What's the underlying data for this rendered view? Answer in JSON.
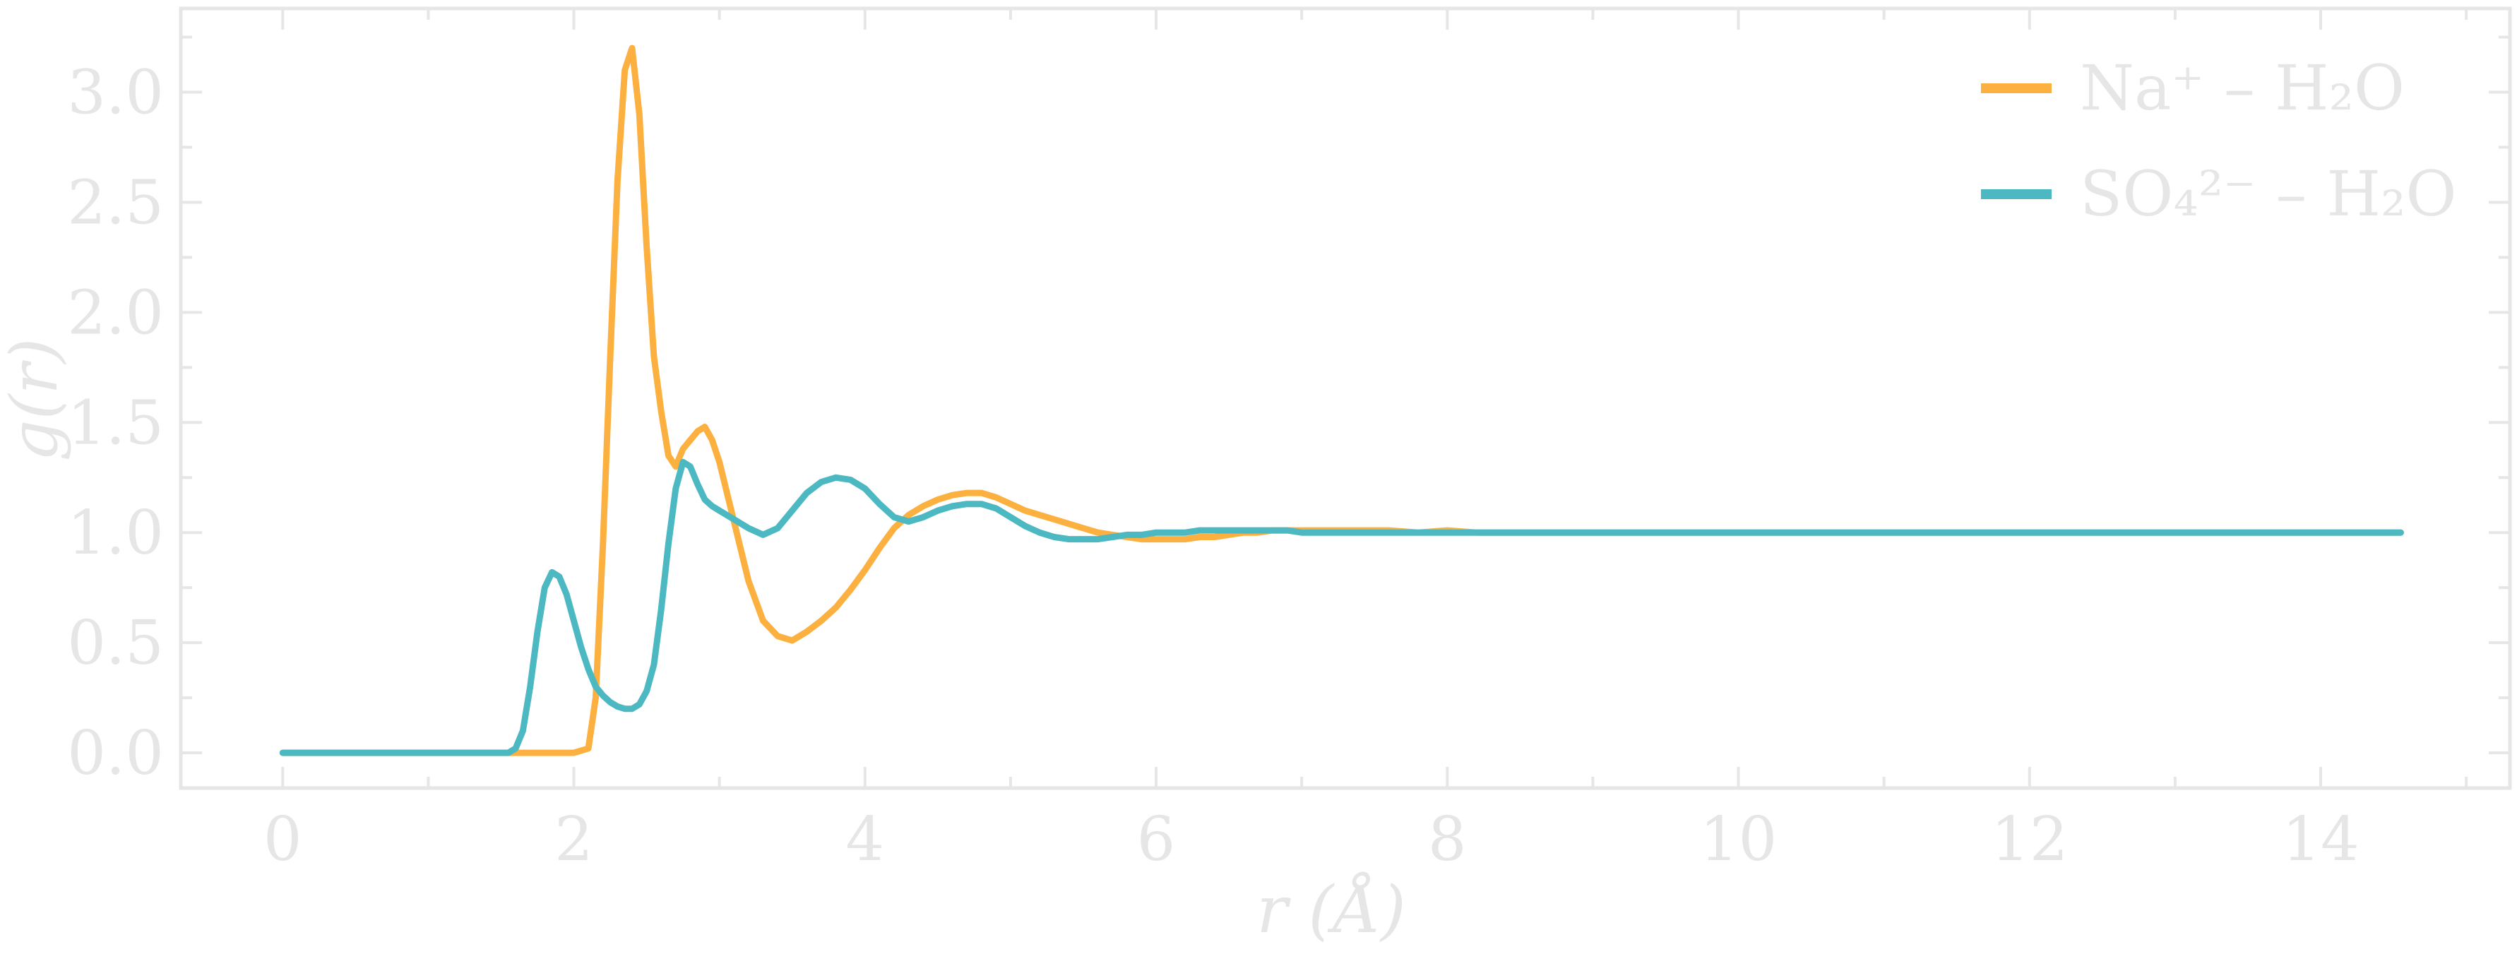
{
  "chart_data": {
    "type": "line",
    "title": "",
    "xlabel": "r (Å)",
    "ylabel": "g(r)",
    "xlim": [
      -0.7,
      15.3
    ],
    "ylim": [
      -0.16,
      3.38
    ],
    "x_ticks": [
      0,
      2,
      4,
      6,
      8,
      10,
      12,
      14
    ],
    "x_tick_labels": [
      "0",
      "2",
      "4",
      "6",
      "8",
      "10",
      "12",
      "14"
    ],
    "y_ticks": [
      0.0,
      0.5,
      1.0,
      1.5,
      2.0,
      2.5,
      3.0
    ],
    "y_tick_labels": [
      "0.0",
      "0.5",
      "1.0",
      "1.5",
      "2.0",
      "2.5",
      "3.0"
    ],
    "grid": false,
    "legend_position": "top-right",
    "colors": {
      "axis": "#e6e6e6",
      "text": "#e6e6e6"
    },
    "series": [
      {
        "name": "Na⁺ – H₂O",
        "color": "#fbb040",
        "x": [
          0,
          2.0,
          2.1,
          2.15,
          2.2,
          2.25,
          2.3,
          2.35,
          2.4,
          2.45,
          2.5,
          2.55,
          2.6,
          2.65,
          2.7,
          2.75,
          2.8,
          2.85,
          2.9,
          2.95,
          3.0,
          3.1,
          3.2,
          3.3,
          3.4,
          3.5,
          3.6,
          3.7,
          3.8,
          3.9,
          4.0,
          4.1,
          4.2,
          4.3,
          4.4,
          4.5,
          4.6,
          4.7,
          4.8,
          4.9,
          5.0,
          5.1,
          5.2,
          5.3,
          5.4,
          5.5,
          5.6,
          5.7,
          5.8,
          5.9,
          6.0,
          6.1,
          6.2,
          6.3,
          6.4,
          6.5,
          6.6,
          6.7,
          6.8,
          6.9,
          7.0,
          7.2,
          7.4,
          7.6,
          7.8,
          8.0,
          8.2,
          8.4,
          8.6,
          8.8,
          9.0,
          9.2,
          9.4,
          9.6,
          9.8,
          10.0,
          10.2,
          10.4,
          10.6,
          10.8,
          11.0,
          11.2,
          11.4,
          11.6,
          11.8,
          12.0,
          12.2,
          12.4,
          12.6,
          12.8,
          13.0,
          13.2,
          13.4,
          13.6,
          13.8,
          14.0,
          14.2,
          14.4,
          14.55
        ],
        "y": [
          0.0,
          0.0,
          0.02,
          0.25,
          0.95,
          1.8,
          2.6,
          3.1,
          3.2,
          2.9,
          2.3,
          1.8,
          1.55,
          1.35,
          1.3,
          1.38,
          1.42,
          1.46,
          1.48,
          1.42,
          1.32,
          1.05,
          0.78,
          0.6,
          0.53,
          0.51,
          0.55,
          0.6,
          0.66,
          0.74,
          0.83,
          0.93,
          1.02,
          1.08,
          1.12,
          1.15,
          1.17,
          1.18,
          1.18,
          1.16,
          1.13,
          1.1,
          1.08,
          1.06,
          1.04,
          1.02,
          1.0,
          0.99,
          0.98,
          0.97,
          0.97,
          0.97,
          0.97,
          0.98,
          0.98,
          0.99,
          1.0,
          1.0,
          1.01,
          1.01,
          1.01,
          1.01,
          1.01,
          1.01,
          1.0,
          1.01,
          1.0,
          1.0,
          1.0,
          1.0,
          1.0,
          1.0,
          1.0,
          1.0,
          1.0,
          1.0,
          1.0,
          1.0,
          1.0,
          1.0,
          1.0,
          1.0,
          1.0,
          1.0,
          1.0,
          1.0,
          1.0,
          1.0,
          1.0,
          1.0,
          1.0,
          1.0,
          1.0,
          1.0,
          1.0,
          1.0,
          1.0,
          1.0,
          1.0
        ]
      },
      {
        "name": "SO₄²⁻ – H₂O",
        "color": "#4bb8c2",
        "x": [
          0,
          1.55,
          1.6,
          1.65,
          1.7,
          1.75,
          1.8,
          1.85,
          1.9,
          1.95,
          2.0,
          2.05,
          2.1,
          2.15,
          2.2,
          2.25,
          2.3,
          2.35,
          2.4,
          2.45,
          2.5,
          2.55,
          2.6,
          2.65,
          2.7,
          2.75,
          2.8,
          2.85,
          2.9,
          2.95,
          3.0,
          3.1,
          3.2,
          3.3,
          3.4,
          3.5,
          3.6,
          3.7,
          3.8,
          3.9,
          4.0,
          4.1,
          4.2,
          4.3,
          4.4,
          4.5,
          4.6,
          4.7,
          4.8,
          4.9,
          5.0,
          5.1,
          5.2,
          5.3,
          5.4,
          5.5,
          5.6,
          5.7,
          5.8,
          5.9,
          6.0,
          6.1,
          6.2,
          6.3,
          6.4,
          6.5,
          6.6,
          6.7,
          6.8,
          6.9,
          7.0,
          7.2,
          7.4,
          7.6,
          7.8,
          8.0,
          8.2,
          8.4,
          8.6,
          8.8,
          9.0,
          9.2,
          9.4,
          9.6,
          9.8,
          10.0,
          10.2,
          10.4,
          10.6,
          10.8,
          11.0,
          11.2,
          11.4,
          11.6,
          11.8,
          12.0,
          12.2,
          12.4,
          12.6,
          12.8,
          13.0,
          13.2,
          13.4,
          13.6,
          13.8,
          14.0,
          14.2,
          14.4,
          14.55
        ],
        "y": [
          0.0,
          0.0,
          0.02,
          0.1,
          0.3,
          0.55,
          0.75,
          0.82,
          0.8,
          0.72,
          0.6,
          0.48,
          0.38,
          0.3,
          0.26,
          0.23,
          0.21,
          0.2,
          0.2,
          0.22,
          0.28,
          0.4,
          0.65,
          0.95,
          1.2,
          1.32,
          1.3,
          1.22,
          1.15,
          1.12,
          1.1,
          1.06,
          1.02,
          0.99,
          1.02,
          1.1,
          1.18,
          1.23,
          1.25,
          1.24,
          1.2,
          1.13,
          1.07,
          1.05,
          1.07,
          1.1,
          1.12,
          1.13,
          1.13,
          1.11,
          1.07,
          1.03,
          1.0,
          0.98,
          0.97,
          0.97,
          0.97,
          0.98,
          0.99,
          0.99,
          1.0,
          1.0,
          1.0,
          1.01,
          1.01,
          1.01,
          1.01,
          1.01,
          1.01,
          1.01,
          1.0,
          1.0,
          1.0,
          1.0,
          1.0,
          1.0,
          1.0,
          1.0,
          1.0,
          1.0,
          1.0,
          1.0,
          1.0,
          1.0,
          1.0,
          1.0,
          1.0,
          1.0,
          1.0,
          1.0,
          1.0,
          1.0,
          1.0,
          1.0,
          1.0,
          1.0,
          1.0,
          1.0,
          1.0,
          1.0,
          1.0,
          1.0,
          1.0,
          1.0,
          1.0,
          1.0,
          1.0,
          1.0,
          1.0
        ]
      }
    ]
  }
}
